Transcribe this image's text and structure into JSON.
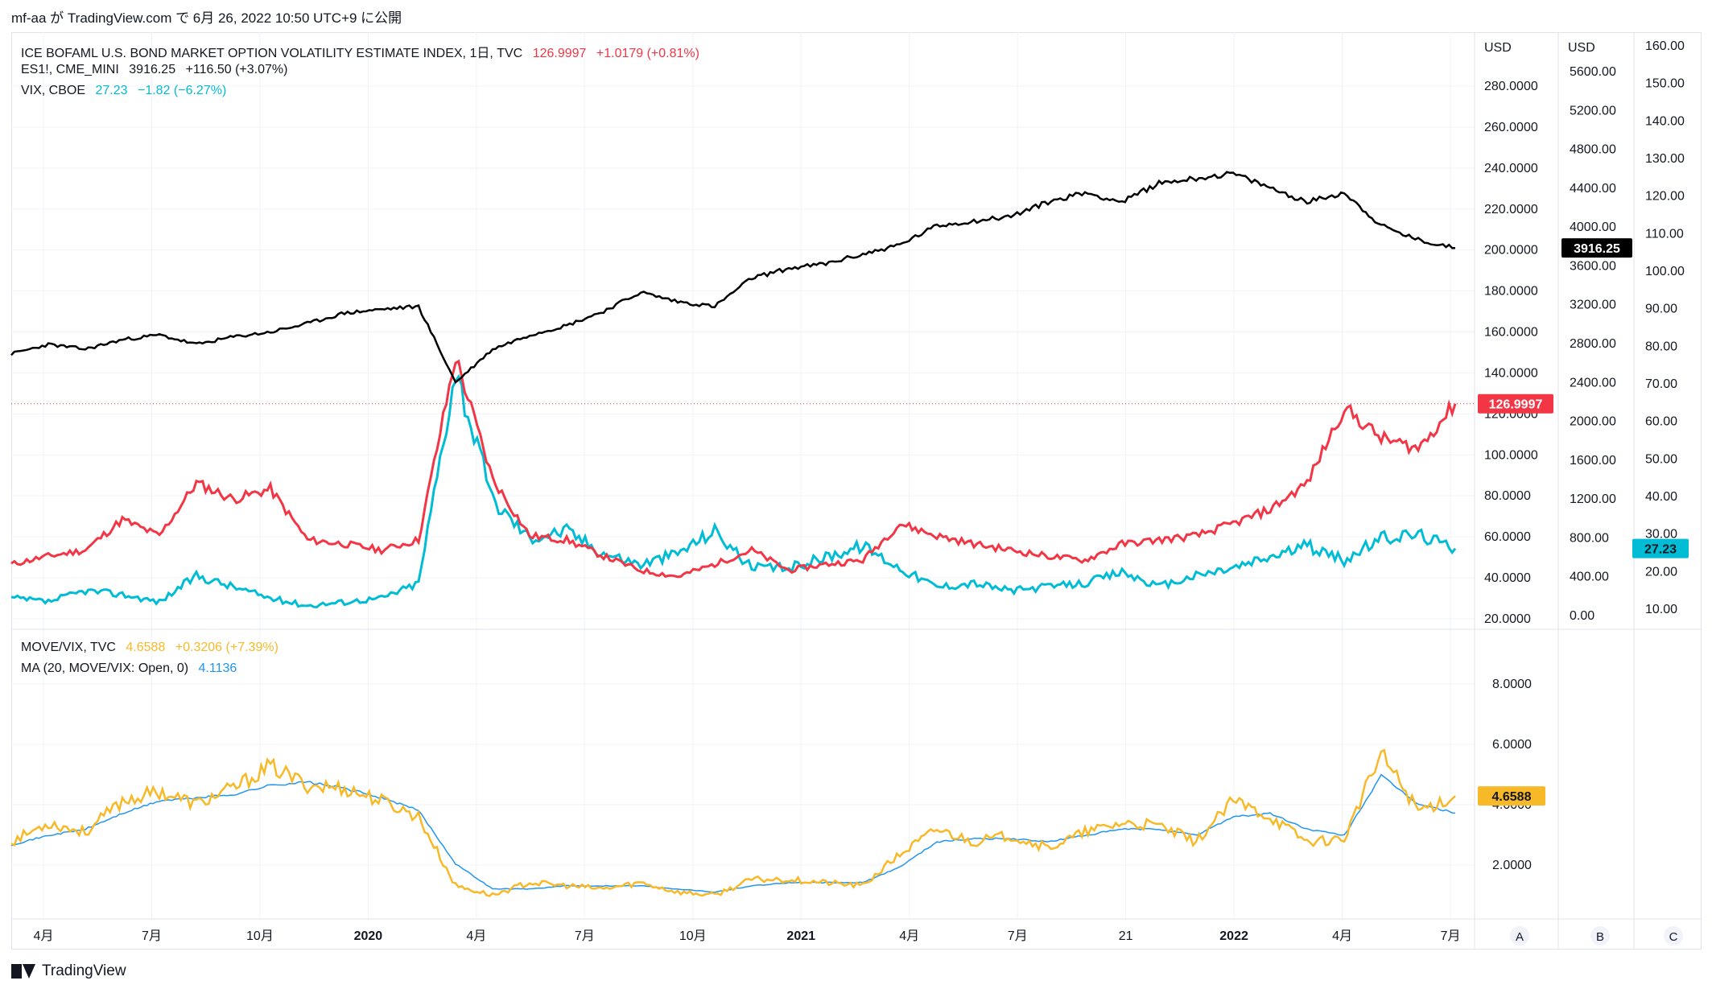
{
  "header": {
    "publish_info": "mf-aa が TradingView.com で 6月 26, 2022 10:50 UTC+9 に公開"
  },
  "legend_main": [
    {
      "name": "ICE BOFAML U.S. BOND MARKET OPTION VOLATILITY ESTIMATE INDEX, 1日, TVC",
      "value": "126.9997",
      "change": "+1.0179 (+0.81%)",
      "color": "#f23645"
    },
    {
      "name": "ES1!, CME_MINI",
      "value": "3916.25",
      "change": "+116.50 (+3.07%)",
      "color": "#131722"
    },
    {
      "name": "VIX, CBOE",
      "value": "27.23",
      "change": "−1.82 (−6.27%)",
      "color": "#00bcd4"
    }
  ],
  "legend_lower": [
    {
      "name": "MOVE/VIX, TVC",
      "value": "4.6588",
      "change": "+0.3206 (+7.39%)",
      "color": "#f7b928"
    },
    {
      "name": "MA (20, MOVE/VIX: Open, 0)",
      "value": "4.1136",
      "change": "",
      "color": "#2196f3"
    }
  ],
  "axes": {
    "usd_label_a": "USD",
    "usd_label_b": "USD",
    "scale_a_ticks": [
      "280.0000",
      "260.0000",
      "240.0000",
      "220.0000",
      "200.0000",
      "180.0000",
      "160.0000",
      "140.0000",
      "120.0000",
      "100.0000",
      "80.0000",
      "60.0000",
      "40.0000",
      "20.0000"
    ],
    "scale_b_ticks": [
      "5600.00",
      "5200.00",
      "4800.00",
      "4400.00",
      "4000.00",
      "3600.00",
      "3200.00",
      "2800.00",
      "2400.00",
      "2000.00",
      "1600.00",
      "1200.00",
      "800.00",
      "400.00",
      "0.00"
    ],
    "scale_c_ticks": [
      "160.00",
      "150.00",
      "140.00",
      "130.00",
      "120.00",
      "110.00",
      "100.00",
      "90.00",
      "80.00",
      "70.00",
      "60.00",
      "50.00",
      "40.00",
      "30.00",
      "20.00",
      "10.00"
    ],
    "lower_ticks": [
      "8.0000",
      "6.0000",
      "4.0000",
      "2.0000"
    ],
    "x_ticks": [
      "4月",
      "7月",
      "10月",
      "2020",
      "4月",
      "7月",
      "10月",
      "2021",
      "4月",
      "7月",
      "21",
      "2022",
      "4月",
      "7月"
    ],
    "scale_buttons": [
      "A",
      "B",
      "C"
    ]
  },
  "price_tags": {
    "move": "126.9997",
    "es": "3916.25",
    "vix": "27.23",
    "ratio": "4.6588"
  },
  "colors": {
    "move": "#f23645",
    "es": "#000000",
    "vix": "#00bcd4",
    "ratio": "#f7b928",
    "ma": "#2196f3",
    "grid": "#f0f3fa"
  },
  "footer": {
    "brand": "TradingView"
  },
  "chart_data": [
    {
      "type": "line",
      "title": "ICE BOFAML U.S. BOND MARKET OPTION VOLATILITY ESTIMATE INDEX / ES1! / VIX",
      "x": [
        "2019-03",
        "2019-04",
        "2019-05",
        "2019-06",
        "2019-07",
        "2019-08",
        "2019-09",
        "2019-10",
        "2019-11",
        "2019-12",
        "2020-01",
        "2020-02",
        "2020-03",
        "2020-04",
        "2020-05",
        "2020-06",
        "2020-07",
        "2020-08",
        "2020-09",
        "2020-10",
        "2020-11",
        "2020-12",
        "2021-01",
        "2021-02",
        "2021-03",
        "2021-04",
        "2021-05",
        "2021-06",
        "2021-07",
        "2021-08",
        "2021-09",
        "2021-10",
        "2021-11",
        "2021-12",
        "2022-01",
        "2022-02",
        "2022-03",
        "2022-04",
        "2022-05",
        "2022-06"
      ],
      "series": [
        {
          "name": "ICE BOFAML U.S. BOND MARKET OPTION VOLATILITY ESTIMATE INDEX",
          "axis": "A",
          "values": [
            48,
            52,
            55,
            70,
            62,
            88,
            80,
            85,
            60,
            58,
            55,
            60,
            150,
            90,
            62,
            60,
            52,
            45,
            42,
            48,
            55,
            45,
            48,
            50,
            68,
            62,
            58,
            55,
            52,
            50,
            58,
            60,
            62,
            68,
            75,
            88,
            125,
            110,
            105,
            127
          ]
        },
        {
          "name": "ES1!",
          "axis": "B",
          "values": [
            2800,
            2900,
            2850,
            2950,
            3000,
            2900,
            2980,
            3030,
            3120,
            3230,
            3270,
            3300,
            2500,
            2850,
            3000,
            3100,
            3250,
            3450,
            3350,
            3300,
            3600,
            3700,
            3750,
            3850,
            3950,
            4150,
            4200,
            4250,
            4400,
            4500,
            4400,
            4600,
            4650,
            4700,
            4550,
            4400,
            4500,
            4150,
            4000,
            3916.25
          ]
        },
        {
          "name": "VIX",
          "axis": "C",
          "values": [
            14,
            13,
            16,
            15,
            13,
            20,
            17,
            14,
            12,
            13,
            14,
            18,
            75,
            40,
            30,
            32,
            26,
            23,
            26,
            32,
            22,
            22,
            25,
            28,
            22,
            17,
            18,
            16,
            17,
            18,
            21,
            17,
            20,
            22,
            25,
            28,
            24,
            30,
            31,
            27.23
          ]
        }
      ],
      "ylim_A": [
        20,
        290
      ],
      "ylim_B": [
        0,
        5800
      ],
      "ylim_C": [
        10,
        160
      ]
    },
    {
      "type": "line",
      "title": "MOVE/VIX, TVC",
      "x": [
        "2019-03",
        "2019-04",
        "2019-05",
        "2019-06",
        "2019-07",
        "2019-08",
        "2019-09",
        "2019-10",
        "2019-11",
        "2019-12",
        "2020-01",
        "2020-02",
        "2020-03",
        "2020-04",
        "2020-05",
        "2020-06",
        "2020-07",
        "2020-08",
        "2020-09",
        "2020-10",
        "2020-11",
        "2020-12",
        "2021-01",
        "2021-02",
        "2021-03",
        "2021-04",
        "2021-05",
        "2021-06",
        "2021-07",
        "2021-08",
        "2021-09",
        "2021-10",
        "2021-11",
        "2021-12",
        "2022-01",
        "2022-02",
        "2022-03",
        "2022-04",
        "2022-05",
        "2022-06"
      ],
      "series": [
        {
          "name": "MOVE/VIX",
          "values": [
            3.2,
            3.8,
            3.5,
            4.5,
            4.8,
            4.4,
            4.9,
            5.6,
            5.0,
            4.9,
            4.5,
            4.0,
            1.8,
            1.5,
            1.9,
            1.8,
            1.7,
            1.9,
            1.6,
            1.5,
            2.0,
            2.0,
            1.9,
            1.8,
            2.8,
            3.6,
            3.2,
            3.4,
            3.0,
            3.5,
            3.8,
            3.7,
            3.2,
            4.5,
            4.0,
            3.2,
            3.3,
            6.0,
            4.2,
            4.6588
          ]
        },
        {
          "name": "MA (20, MOVE/VIX: Open, 0)",
          "values": [
            3.1,
            3.4,
            3.6,
            4.1,
            4.5,
            4.6,
            4.7,
            5.0,
            5.1,
            4.9,
            4.6,
            4.2,
            2.5,
            1.7,
            1.7,
            1.8,
            1.8,
            1.8,
            1.7,
            1.6,
            1.8,
            1.9,
            1.9,
            1.9,
            2.4,
            3.2,
            3.3,
            3.3,
            3.2,
            3.4,
            3.6,
            3.6,
            3.4,
            4.0,
            4.1,
            3.6,
            3.4,
            5.3,
            4.4,
            4.1136
          ]
        }
      ],
      "ylim": [
        1,
        9.5
      ]
    }
  ]
}
